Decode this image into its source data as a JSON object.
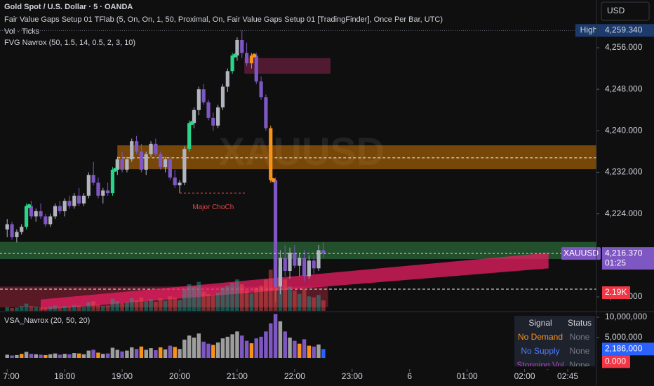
{
  "header": {
    "symbol": "Gold Spot / U.S. Dollar · 5 · OANDA",
    "indicators": [
      "Fair Value Gaps Setup 01 TFlab (5, On, On, 1, 50, Proximal, On, Fair Value Gaps Setup 01 [TradingFinder], Once Per Bar, UTC)",
      "Vol · Ticks",
      "FVG Navrox (50, 1.5, 14, 0.5, 2, 3, 10)"
    ],
    "currency": "USD"
  },
  "chart_data": [
    {
      "type": "candlestick",
      "watermark": "XAUUSD",
      "up_color": "#b2b5be",
      "down_color": "#7e57c2",
      "volume_up_color": "rgba(38,166,154,0.45)",
      "volume_down_color": "rgba(239,83,80,0.45)",
      "ohlc": [
        [
          4221,
          4223,
          4219.5,
          4222
        ],
        [
          4222,
          4222.5,
          4219,
          4219.5
        ],
        [
          4219.5,
          4221,
          4218.5,
          4220.5
        ],
        [
          4220.5,
          4222,
          4220,
          4221.5
        ],
        [
          4221.5,
          4226,
          4221,
          4225.5
        ],
        [
          4225.5,
          4226.5,
          4223,
          4223.5
        ],
        [
          4223.5,
          4225,
          4222.5,
          4224.5
        ],
        [
          4224.5,
          4226,
          4223,
          4223.5
        ],
        [
          4223.5,
          4224,
          4221.5,
          4222
        ],
        [
          4222,
          4224,
          4221.5,
          4223.5
        ],
        [
          4223.5,
          4226,
          4223,
          4225.5
        ],
        [
          4225.5,
          4226.5,
          4224,
          4224.5
        ],
        [
          4224.5,
          4227,
          4223.5,
          4226.5
        ],
        [
          4226.5,
          4227.5,
          4225,
          4225.5
        ],
        [
          4225.5,
          4228,
          4225,
          4227.5
        ],
        [
          4227.5,
          4229,
          4225.5,
          4226
        ],
        [
          4226,
          4228,
          4225.5,
          4227.5
        ],
        [
          4227.5,
          4232,
          4227,
          4231.5
        ],
        [
          4231.5,
          4234,
          4229.5,
          4230
        ],
        [
          4230,
          4231,
          4227,
          4227.5
        ],
        [
          4227.5,
          4229,
          4226,
          4228.5
        ],
        [
          4228.5,
          4230,
          4227.5,
          4228
        ],
        [
          4228,
          4233,
          4227.5,
          4232.5
        ],
        [
          4232.5,
          4235,
          4231.5,
          4234.5
        ],
        [
          4234.5,
          4236,
          4232,
          4232.5
        ],
        [
          4232.5,
          4235,
          4232,
          4234.5
        ],
        [
          4234.5,
          4238.5,
          4234,
          4238
        ],
        [
          4238,
          4239,
          4235.5,
          4236
        ],
        [
          4236,
          4237.5,
          4232,
          4232.5
        ],
        [
          4232.5,
          4236,
          4231.5,
          4235.5
        ],
        [
          4235.5,
          4238,
          4235,
          4237.5
        ],
        [
          4237.5,
          4238.5,
          4235,
          4235.5
        ],
        [
          4235.5,
          4236,
          4232.5,
          4233
        ],
        [
          4233,
          4235,
          4232,
          4234.5
        ],
        [
          4234.5,
          4235,
          4230.5,
          4231
        ],
        [
          4231,
          4232.5,
          4229,
          4229.5
        ],
        [
          4229.5,
          4230.5,
          4228,
          4230
        ],
        [
          4230,
          4237,
          4229.5,
          4236.5
        ],
        [
          4236.5,
          4242,
          4236,
          4241.5
        ],
        [
          4241.5,
          4244.5,
          4240.5,
          4244
        ],
        [
          4244,
          4248.5,
          4243,
          4248
        ],
        [
          4248,
          4249,
          4245,
          4245.5
        ],
        [
          4245.5,
          4246,
          4242,
          4242.5
        ],
        [
          4242.5,
          4243.5,
          4240,
          4241
        ],
        [
          4241,
          4245,
          4240.5,
          4244.5
        ],
        [
          4244.5,
          4249,
          4244,
          4248.5
        ],
        [
          4248.5,
          4252,
          4247.5,
          4251.5
        ],
        [
          4251.5,
          4255,
          4251,
          4254.5
        ],
        [
          4254.5,
          4258,
          4253.5,
          4257.5
        ],
        [
          4257.5,
          4259.34,
          4254,
          4255
        ],
        [
          4255,
          4257,
          4252.5,
          4253
        ],
        [
          4253,
          4255,
          4252,
          4254.5
        ],
        [
          4254.5,
          4255,
          4249,
          4249.5
        ],
        [
          4249.5,
          4250.5,
          4246,
          4246.5
        ],
        [
          4246.5,
          4247,
          4240,
          4240.5
        ],
        [
          4240.5,
          4241,
          4230,
          4230.5
        ],
        [
          4230.5,
          4231,
          4207,
          4210
        ],
        [
          4210,
          4217,
          4208.5,
          4215.5
        ],
        [
          4215.5,
          4218,
          4212,
          4213
        ],
        [
          4213,
          4217.5,
          4211.5,
          4216.5
        ],
        [
          4216.5,
          4218,
          4213.5,
          4214
        ],
        [
          4214,
          4216.5,
          4212,
          4215.5
        ],
        [
          4215.5,
          4217,
          4211,
          4212
        ],
        [
          4212,
          4216,
          4211.5,
          4215
        ],
        [
          4215,
          4216,
          4212.5,
          4213.5
        ],
        [
          4213.5,
          4218,
          4213,
          4217
        ],
        [
          4217,
          4218.5,
          4215.5,
          4216.37
        ]
      ],
      "signals": [
        {
          "index": 4,
          "color": "#2bd48a"
        },
        {
          "index": 22,
          "color": "#2bd48a"
        },
        {
          "index": 38,
          "color": "#2bd48a"
        },
        {
          "index": 47,
          "color": "#2bd48a"
        },
        {
          "index": 51,
          "color": "#f7931a"
        },
        {
          "index": 55,
          "color": "#f7931a"
        }
      ],
      "zones": [
        {
          "low": 4232.6,
          "high": 4237.2,
          "from": 23,
          "to": 123,
          "color": "rgba(245,140,0,0.45)",
          "mid": 4234.8
        },
        {
          "low": 4215.3,
          "high": 4218.6,
          "from": -1.5,
          "to": 123,
          "color": "rgba(60,160,80,0.45)"
        },
        {
          "low": 4206,
          "high": 4210,
          "from": -1.5,
          "to": 67,
          "color": "rgba(200,40,70,0.4)",
          "mid": 4209.5
        },
        {
          "low": 4251,
          "high": 4254,
          "from": 49.5,
          "to": 67.5,
          "color": "rgba(160,40,90,0.45)"
        }
      ],
      "channel": {
        "from": [
          7,
          4205.5,
          4207.5
        ],
        "to": [
          113,
          4213.5,
          4216.5
        ],
        "color": "rgba(233,30,99,0.75)"
      },
      "annotation": {
        "text": "Major ChoCh",
        "value": 4228,
        "from": 36,
        "to": 50,
        "color": "#e04848"
      },
      "ylim": [
        4205.3,
        4265.2
      ],
      "yticks": [
        {
          "value": 4256,
          "label": "4,256.000"
        },
        {
          "value": 4248,
          "label": "4,248.000"
        },
        {
          "value": 4240,
          "label": "4,240.000"
        },
        {
          "value": 4232,
          "label": "4,232.000"
        },
        {
          "value": 4224,
          "label": "4,224.000"
        },
        {
          "value": 4208,
          "label": "4,208.000"
        }
      ],
      "xlim": [
        -1.5,
        123
      ],
      "xticks": [
        {
          "value": 0,
          "label": "7:00"
        },
        {
          "value": 12,
          "label": "18:00"
        },
        {
          "value": 24,
          "label": "19:00"
        },
        {
          "value": 36,
          "label": "20:00"
        },
        {
          "value": 48,
          "label": "21:00"
        },
        {
          "value": 60,
          "label": "22:00"
        },
        {
          "value": 72,
          "label": "23:00"
        },
        {
          "value": 84,
          "label": "6"
        },
        {
          "value": 96,
          "label": "01:00"
        },
        {
          "value": 108,
          "label": "02:00"
        },
        {
          "value": 117,
          "label": "02:45"
        }
      ],
      "high": {
        "label": "High",
        "value": 4259.34,
        "value_label": "4,259.340"
      },
      "last": {
        "symbol": "XAUUSD",
        "value": 4216.37,
        "value_label": "4,216.370",
        "countdown": "01:25"
      },
      "volume_badge": "2.19K"
    },
    {
      "type": "bar",
      "title": "VSA_Navrox (20, 50, 20)",
      "values": [
        800000,
        600000,
        700000,
        1000000,
        1500000,
        1000000,
        900000,
        800000,
        700000,
        900000,
        1100000,
        800000,
        1000000,
        900000,
        1200000,
        1100000,
        900000,
        1800000,
        2000000,
        1300000,
        1000000,
        1100000,
        2500000,
        2000000,
        1600000,
        1800000,
        2600000,
        2200000,
        2800000,
        2000000,
        2400000,
        1900000,
        2600000,
        2100000,
        3000000,
        2700000,
        2200000,
        4500000,
        5500000,
        5000000,
        6000000,
        4000000,
        3500000,
        3200000,
        3800000,
        4800000,
        5200000,
        5800000,
        6500000,
        5500000,
        4200000,
        3600000,
        4800000,
        5200000,
        6500000,
        8500000,
        10800000,
        9000000,
        6500000,
        5000000,
        4200000,
        3500000,
        4600000,
        3000000,
        2800000,
        3300000,
        2186000
      ],
      "kinds": [
        "g",
        "p",
        "g",
        "o",
        "g",
        "p",
        "g",
        "p",
        "o",
        "g",
        "g",
        "p",
        "g",
        "p",
        "g",
        "o",
        "g",
        "g",
        "p",
        "o",
        "g",
        "p",
        "g",
        "g",
        "p",
        "g",
        "g",
        "p",
        "o",
        "g",
        "g",
        "p",
        "o",
        "g",
        "p",
        "o",
        "g",
        "g",
        "g",
        "g",
        "g",
        "p",
        "p",
        "o",
        "g",
        "g",
        "g",
        "g",
        "g",
        "p",
        "p",
        "o",
        "p",
        "p",
        "p",
        "p",
        "p",
        "g",
        "p",
        "g",
        "p",
        "o",
        "p",
        "o",
        "p",
        "g",
        "b"
      ],
      "palette": {
        "g": "#9e9e9e",
        "p": "#7e57c2",
        "o": "#f7931a",
        "b": "#2962ff"
      },
      "ylim": [
        0,
        10860000
      ],
      "yticks": [
        {
          "value": 10000000,
          "label": "10,000,000"
        },
        {
          "value": 5000000,
          "label": "5,000,000"
        }
      ],
      "value_label": "2,186,000",
      "second_badge": "0.000"
    }
  ],
  "table": {
    "header": [
      "Signal",
      "Status"
    ],
    "rows": [
      [
        "No Demand",
        "None"
      ],
      [
        "No Supply",
        "None"
      ],
      [
        "Stopping Vol",
        "None"
      ]
    ],
    "colors": [
      "#f7931a",
      "#4d7cff",
      "#ab47bc"
    ]
  }
}
